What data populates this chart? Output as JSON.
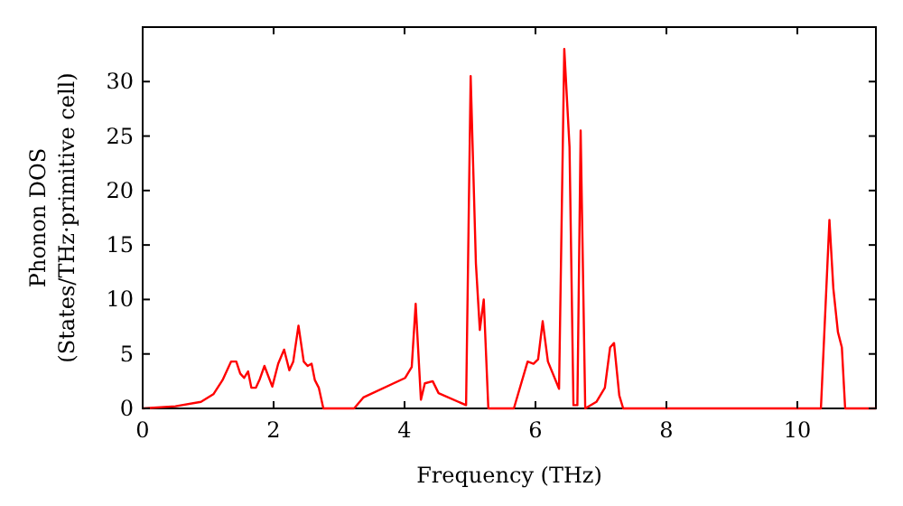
{
  "chart_data": {
    "type": "line",
    "xlabel": "Frequency (THz)",
    "ylabel": "Phonon DOS\n(States/THz·primitive cell)",
    "xlim": [
      0,
      11.2
    ],
    "ylim": [
      0,
      35
    ],
    "xticks": [
      0,
      2,
      4,
      6,
      8,
      10
    ],
    "yticks": [
      0,
      5,
      10,
      15,
      20,
      25,
      30
    ],
    "grid": false,
    "series": [
      {
        "color": "#ff0000",
        "x": [
          0,
          0.5,
          0.89,
          1.08,
          1.22,
          1.35,
          1.43,
          1.49,
          1.55,
          1.61,
          1.66,
          1.73,
          1.79,
          1.86,
          1.98,
          2.07,
          2.16,
          2.24,
          2.3,
          2.38,
          2.46,
          2.52,
          2.58,
          2.63,
          2.69,
          2.76,
          3.23,
          3.37,
          4.01,
          4.11,
          4.17,
          4.25,
          4.31,
          4.43,
          4.52,
          4.94,
          5.01,
          5.09,
          5.15,
          5.21,
          5.28,
          5.67,
          5.88,
          5.97,
          6.04,
          6.11,
          6.19,
          6.36,
          6.44,
          6.52,
          6.58,
          6.64,
          6.69,
          6.76,
          6.93,
          7.06,
          7.14,
          7.2,
          7.28,
          7.34,
          10.36,
          10.49,
          10.55,
          10.62,
          10.68,
          10.73,
          11.2
        ],
        "values": [
          0,
          0.2,
          0.6,
          1.3,
          2.6,
          4.3,
          4.3,
          3.2,
          2.8,
          3.4,
          1.9,
          1.9,
          2.7,
          3.9,
          2.0,
          4.1,
          5.4,
          3.5,
          4.3,
          7.6,
          4.3,
          3.9,
          4.1,
          2.6,
          1.9,
          0,
          0,
          1.0,
          2.8,
          3.8,
          9.6,
          0.8,
          2.3,
          2.5,
          1.4,
          0.3,
          30.5,
          13.3,
          7.2,
          10.0,
          0,
          0,
          4.3,
          4.1,
          4.5,
          8.0,
          4.3,
          1.8,
          33.0,
          24,
          0.3,
          0.3,
          25.5,
          0,
          0.6,
          1.9,
          5.6,
          6.0,
          1.2,
          0,
          0,
          17.3,
          11,
          7.0,
          5.6,
          0,
          0
        ]
      }
    ]
  }
}
